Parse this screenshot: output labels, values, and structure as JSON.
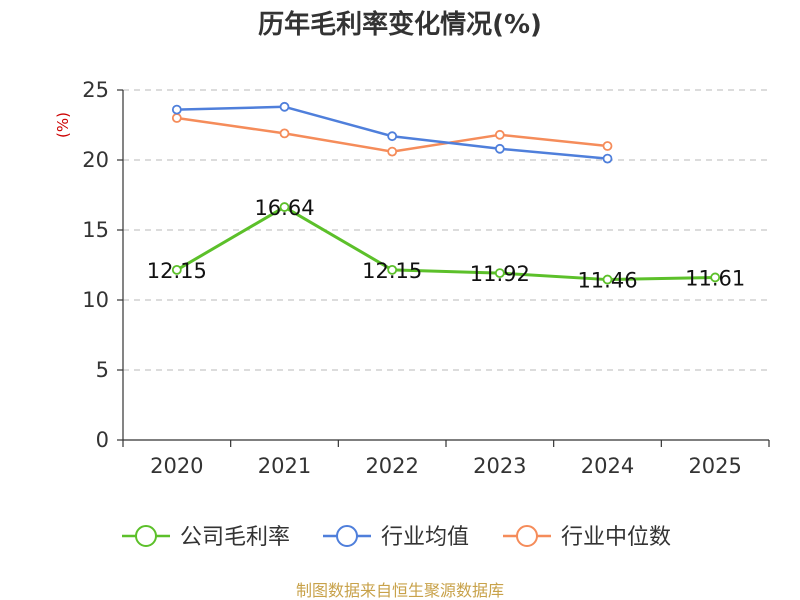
{
  "chart_data": {
    "type": "line",
    "title": "历年毛利率变化情况(%)",
    "ylabel": "(%)",
    "xlabel": "",
    "categories": [
      "2020",
      "2021",
      "2022",
      "2023",
      "2024",
      "2025"
    ],
    "ylim": [
      0,
      25
    ],
    "yticks": [
      0,
      5,
      10,
      15,
      20,
      25
    ],
    "grid": true,
    "legend_position": "bottom",
    "series": [
      {
        "name": "公司毛利率",
        "color": "#5cc02a",
        "values": [
          12.15,
          16.64,
          12.15,
          11.92,
          11.46,
          11.61
        ],
        "labels": [
          "12.15",
          "16.64",
          "12.15",
          "11.92",
          "11.46",
          "11.61"
        ]
      },
      {
        "name": "行业均值",
        "color": "#4f7fdb",
        "values": [
          23.6,
          23.8,
          21.7,
          20.8,
          20.1,
          null
        ]
      },
      {
        "name": "行业中位数",
        "color": "#f58c5a",
        "values": [
          23.0,
          21.9,
          20.6,
          21.8,
          21.0,
          null
        ]
      }
    ]
  },
  "source": {
    "text": "制图数据来自恒生聚源数据库",
    "color": "#c8a24a"
  }
}
